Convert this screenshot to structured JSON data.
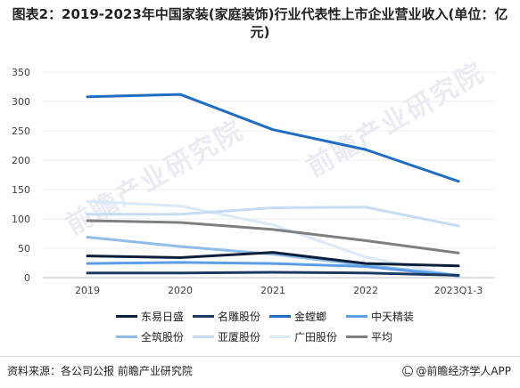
{
  "title": "图表2：2019-2023年中国家装(家庭装饰)行业代表性上市企业营业收入(单位：亿元)",
  "watermark": "前瞻产业研究院",
  "source_label": "资料来源：各公司公报 前瞻产业研究院",
  "brand_label": "@前瞻经济学人APP",
  "chart_data": {
    "type": "line",
    "title": "图表2：2019-2023年中国家装(家庭装饰)行业代表性上市企业营业收入(单位：亿元)",
    "x": [
      "2019",
      "2020",
      "2021",
      "2022",
      "2023Q1-3"
    ],
    "ylim": [
      0,
      350
    ],
    "yticks": [
      0,
      50,
      100,
      150,
      200,
      250,
      300,
      350
    ],
    "grid": true,
    "legend_position": "bottom",
    "series": [
      {
        "name": "东易日盛",
        "color": "#0b1f3a",
        "values": [
          37,
          34,
          43,
          24,
          20
        ]
      },
      {
        "name": "名雕股份",
        "color": "#1b3a63",
        "values": [
          8,
          8,
          9,
          8,
          4
        ]
      },
      {
        "name": "金螳螂",
        "color": "#1f6dc4",
        "values": [
          308,
          312,
          252,
          218,
          164
        ]
      },
      {
        "name": "中天精装",
        "color": "#5b9ee6",
        "values": [
          24,
          26,
          24,
          19,
          3
        ]
      },
      {
        "name": "全筑股份",
        "color": "#8fbce9",
        "values": [
          69,
          53,
          40,
          21,
          4
        ]
      },
      {
        "name": "亚厦股份",
        "color": "#c6dcf2",
        "values": [
          108,
          108,
          119,
          120,
          88
        ]
      },
      {
        "name": "广田股份",
        "color": "#dbe8f5",
        "values": [
          130,
          122,
          90,
          35,
          3
        ]
      },
      {
        "name": "平均",
        "color": "#7f7f7f",
        "values": [
          97,
          94,
          82,
          63,
          42
        ]
      }
    ]
  }
}
